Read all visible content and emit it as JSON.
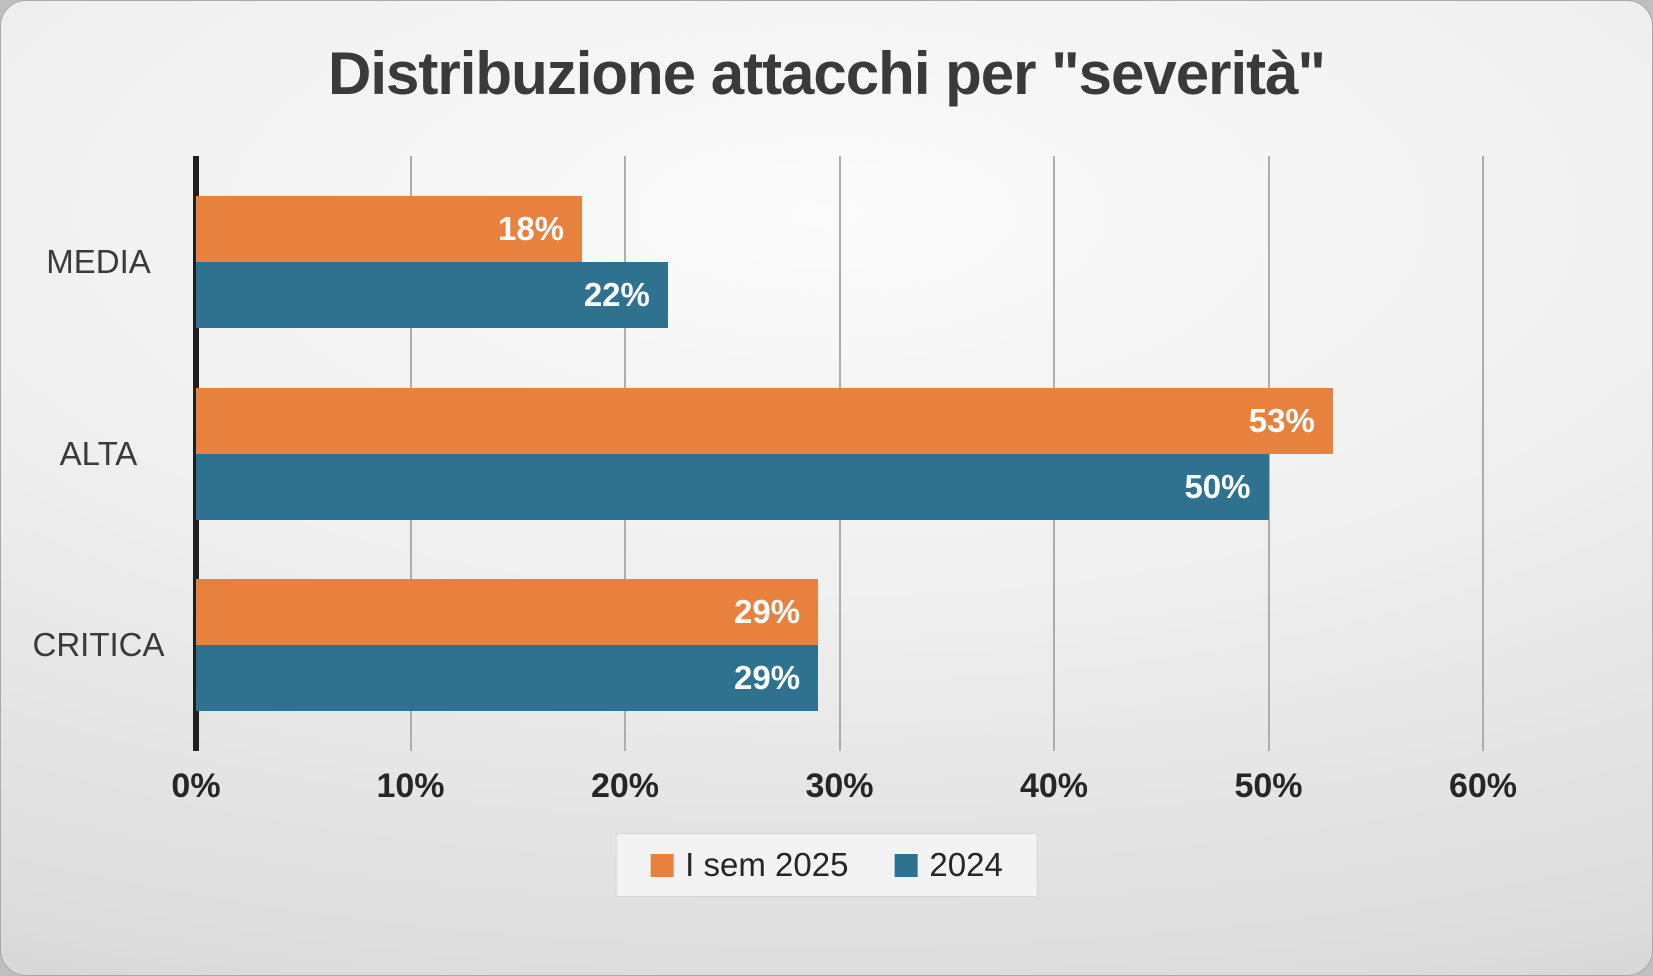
{
  "title": "Distribuzione attacchi per \"severità\"",
  "chart_data": {
    "type": "bar",
    "orientation": "horizontal",
    "title": "Distribuzione attacchi per \"severità\"",
    "categories": [
      "MEDIA",
      "ALTA",
      "CRITICA"
    ],
    "series": [
      {
        "name": "I sem 2025",
        "color": "#E8813E",
        "values": [
          18,
          53,
          29
        ]
      },
      {
        "name": "2024",
        "color": "#2E7290",
        "values": [
          22,
          50,
          29
        ]
      }
    ],
    "value_suffix": "%",
    "xlim": [
      0,
      60
    ],
    "x_ticks": [
      0,
      10,
      20,
      30,
      40,
      50,
      60
    ],
    "x_tick_labels": [
      "0%",
      "10%",
      "20%",
      "30%",
      "40%",
      "50%",
      "60%"
    ],
    "grid": true,
    "legend_position": "bottom",
    "data_labels": {
      "I sem 2025": [
        "18%",
        "53%",
        "29%"
      ],
      "2024": [
        "22%",
        "50%",
        "29%"
      ]
    }
  }
}
